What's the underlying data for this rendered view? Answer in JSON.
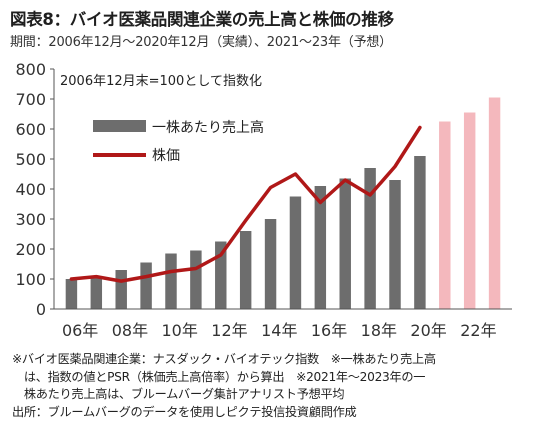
{
  "header": {
    "title": "図表8：バイオ医薬品関連企業の売上高と株価の推移",
    "subtitle": "期間：2006年12月～2020年12月（実績）、2021～23年（予想）"
  },
  "chart_data": {
    "type": "bar+line",
    "annotation": "2006年12月末=100として指数化",
    "x_tick_labels": [
      "06年",
      "08年",
      "10年",
      "12年",
      "14年",
      "16年",
      "18年",
      "20年",
      "22年"
    ],
    "x_ticks_at": [
      2006,
      2008,
      2010,
      2012,
      2014,
      2016,
      2018,
      2020,
      2022
    ],
    "ylim": [
      0,
      800
    ],
    "y_ticks": [
      0,
      100,
      200,
      300,
      400,
      500,
      600,
      700,
      800
    ],
    "grid": false,
    "legend": "top-left",
    "series": [
      {
        "name": "一株あたり売上高",
        "kind": "bar",
        "color": "#6d6d6d",
        "forecast_color": "#f4b8bd",
        "x": [
          2006,
          2007,
          2008,
          2009,
          2010,
          2011,
          2012,
          2013,
          2014,
          2015,
          2016,
          2017,
          2018,
          2019,
          2020,
          2021,
          2022,
          2023
        ],
        "values": [
          100,
          110,
          130,
          155,
          185,
          195,
          225,
          260,
          300,
          375,
          410,
          435,
          470,
          430,
          510,
          625,
          655,
          705
        ],
        "forecast_from": 2021
      },
      {
        "name": "株価",
        "kind": "line",
        "color": "#b01818",
        "x": [
          2006,
          2007,
          2008,
          2009,
          2010,
          2011,
          2012,
          2013,
          2014,
          2015,
          2016,
          2017,
          2018,
          2019,
          2020
        ],
        "values": [
          100,
          108,
          93,
          108,
          125,
          135,
          180,
          295,
          405,
          450,
          355,
          430,
          380,
          475,
          605
        ]
      }
    ]
  },
  "notes": {
    "line1": "※バイオ医薬品関連企業：ナスダック・バイオテック指数　※一株あたり売上高",
    "line2": "　は、指数の値とPSR（株価売上高倍率）から算出　※2021年～2023年の一",
    "line3": "　株あたり売上高は、ブルームバーグ集計アナリスト予想平均",
    "line4": "出所：ブルームバーグのデータを使用しピクテ投信投資顧問作成"
  }
}
